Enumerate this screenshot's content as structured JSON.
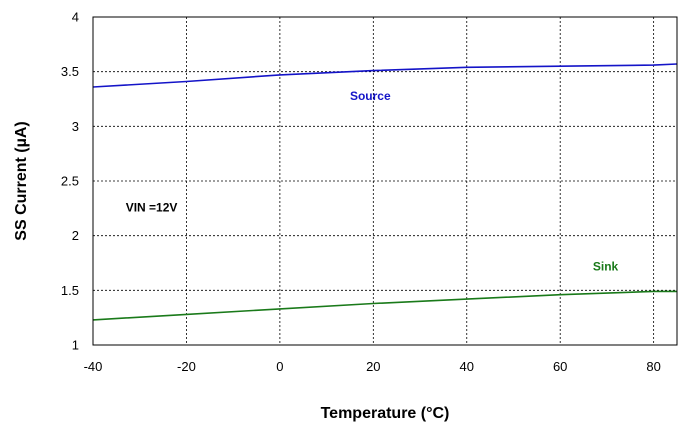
{
  "chart_data": {
    "type": "line",
    "title": "",
    "xlabel": "Temperature (°C)",
    "ylabel": "SS Current (µA)",
    "xlim": [
      -40,
      85
    ],
    "ylim": [
      1,
      4
    ],
    "x_ticks": [
      -40,
      -20,
      0,
      20,
      40,
      60,
      80
    ],
    "y_ticks": [
      1,
      1.5,
      2,
      2.5,
      3,
      3.5,
      4
    ],
    "y_tick_labels": [
      "1",
      "1.5",
      "2",
      "2.5",
      "3",
      "3.5",
      "4"
    ],
    "grid": true,
    "series": [
      {
        "name": "Source",
        "color": "#1414c8",
        "x": [
          -40,
          -20,
          0,
          20,
          40,
          60,
          80,
          85
        ],
        "y": [
          3.36,
          3.41,
          3.47,
          3.51,
          3.54,
          3.55,
          3.56,
          3.57
        ]
      },
      {
        "name": "Sink",
        "color": "#1a7a1a",
        "x": [
          -40,
          -20,
          0,
          20,
          40,
          60,
          80,
          85
        ],
        "y": [
          1.23,
          1.28,
          1.33,
          1.38,
          1.42,
          1.46,
          1.49,
          1.49
        ]
      }
    ],
    "annotations": [
      {
        "text": "VIN =12V",
        "x": -33,
        "y": 2.22,
        "color": "#000000"
      },
      {
        "text": "Source",
        "x": 15,
        "y": 3.24,
        "color": "#1414c8"
      },
      {
        "text": "Sink",
        "x": 67,
        "y": 1.68,
        "color": "#1a7a1a"
      }
    ]
  }
}
